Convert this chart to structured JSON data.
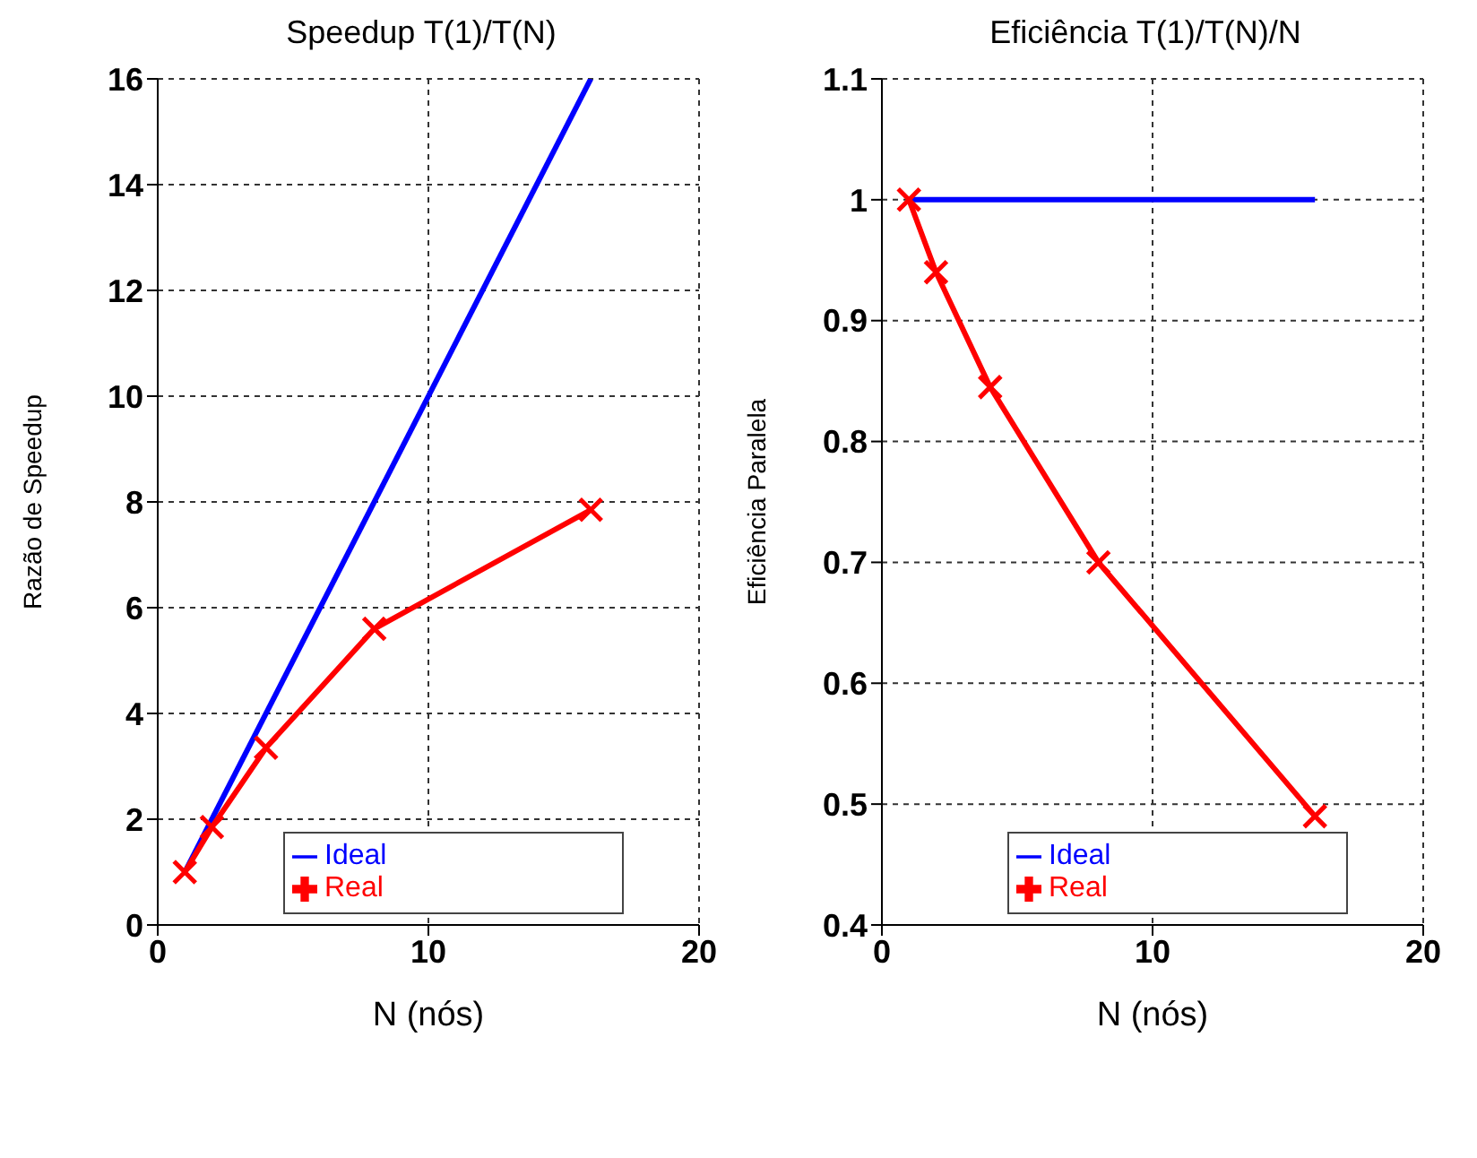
{
  "chart_data": [
    {
      "type": "line",
      "title": "Speedup T(1)/T(N)",
      "xlabel": "N (nós)",
      "ylabel": "Razão de Speedup",
      "xlim": [
        0,
        20
      ],
      "xticks": [
        0,
        10,
        20
      ],
      "ylim": [
        0,
        16
      ],
      "yticks": [
        0,
        2,
        4,
        6,
        8,
        10,
        12,
        14,
        16
      ],
      "grid": true,
      "legend": "bottom",
      "series": [
        {
          "name": "Ideal",
          "color": "#0000ff",
          "x": [
            1,
            16
          ],
          "values": [
            1,
            16
          ],
          "marker": "none"
        },
        {
          "name": "Real",
          "color": "#ff0000",
          "x": [
            1,
            2,
            4,
            8,
            16
          ],
          "values": [
            1,
            1.85,
            3.35,
            5.6,
            7.85
          ],
          "marker": "cross"
        }
      ]
    },
    {
      "type": "line",
      "title": "Eficiência T(1)/T(N)/N",
      "xlabel": "N (nós)",
      "ylabel": "Eficiência Paralela",
      "xlim": [
        0,
        20
      ],
      "xticks": [
        0,
        10,
        20
      ],
      "ylim": [
        0.4,
        1.1
      ],
      "yticks": [
        0.4,
        0.5,
        0.6,
        0.7,
        0.8,
        0.9,
        1,
        1.1
      ],
      "grid": true,
      "legend": "bottom",
      "series": [
        {
          "name": "Ideal",
          "color": "#0000ff",
          "x": [
            1,
            16
          ],
          "values": [
            1,
            1
          ],
          "marker": "none"
        },
        {
          "name": "Real",
          "color": "#ff0000",
          "x": [
            1,
            2,
            4,
            8,
            16
          ],
          "values": [
            1,
            0.94,
            0.845,
            0.7,
            0.49
          ],
          "marker": "cross"
        }
      ]
    }
  ]
}
